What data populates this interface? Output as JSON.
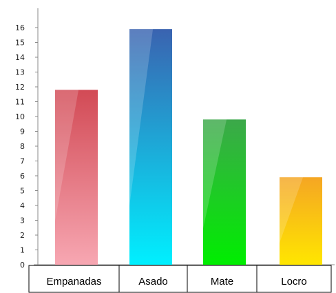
{
  "chart_data": {
    "type": "bar",
    "title": "",
    "xlabel": "",
    "ylabel": "",
    "categories": [
      "Empanadas",
      "Asado",
      "Mate",
      "Locro"
    ],
    "values": [
      11.8,
      15.9,
      9.8,
      5.9
    ],
    "ylim": [
      0,
      16
    ],
    "y_ticks": [
      "0",
      "1",
      "2",
      "3",
      "4",
      "5",
      "6",
      "7",
      "8",
      "9",
      "10",
      "11",
      "12",
      "13",
      "14",
      "15",
      "16"
    ],
    "grid": false,
    "legend": "none",
    "bar_colors": [
      {
        "top": "#d24a55",
        "bottom": "#f7a7b2"
      },
      {
        "top": "#3a63b0",
        "bottom": "#00f0ff"
      },
      {
        "top": "#3ca84a",
        "bottom": "#00ee00"
      },
      {
        "top": "#f5a623",
        "bottom": "#ffe600"
      }
    ],
    "axis_color": "#888888",
    "category_box_color": "#000000"
  }
}
